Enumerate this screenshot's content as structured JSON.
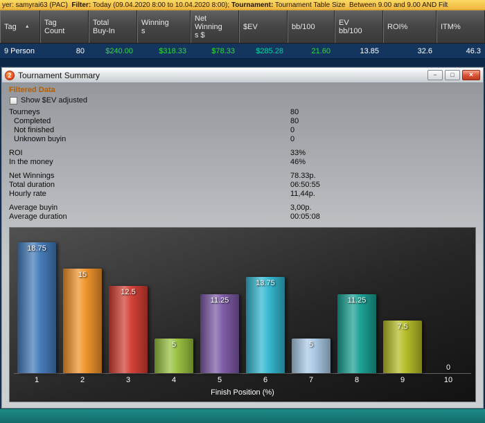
{
  "filter_bar": {
    "segments": [
      {
        "text": "yer: samyrai63 (PAC)  ",
        "bold": false
      },
      {
        "text": "Filter:",
        "bold": true
      },
      {
        "text": " Today (09.04.2020 8:00 to 10.04.2020 8:00); ",
        "bold": false
      },
      {
        "text": "Tournament:",
        "bold": true
      },
      {
        "text": " Tournament Table Size  Between 9.00 and 9.00 AND Filt",
        "bold": false
      }
    ]
  },
  "results_table": {
    "columns": [
      {
        "key": "tag",
        "label": "Tag",
        "sort": "asc",
        "wrap": false
      },
      {
        "key": "tag-count",
        "label": "Tag Count",
        "sort": null,
        "wrap": true
      },
      {
        "key": "total-buyin",
        "label": "Total Buy-In",
        "sort": null,
        "wrap": true
      },
      {
        "key": "winnings",
        "label": "Winnings",
        "sort": null,
        "wrap": true
      },
      {
        "key": "net-winnings",
        "label": "Net Winnings $",
        "sort": null,
        "wrap": true
      },
      {
        "key": "ev",
        "label": "$EV",
        "sort": null,
        "wrap": false
      },
      {
        "key": "bb100",
        "label": "bb/100",
        "sort": null,
        "wrap": false
      },
      {
        "key": "ev-bb100",
        "label": "EV bb/100",
        "sort": null,
        "wrap": true
      },
      {
        "key": "roi",
        "label": "ROI%",
        "sort": null,
        "wrap": false
      },
      {
        "key": "itm",
        "label": "ITM%",
        "sort": null,
        "wrap": false
      }
    ],
    "row": [
      {
        "text": "9 Person",
        "style": "plain",
        "align": "left"
      },
      {
        "text": "80",
        "style": "plain"
      },
      {
        "text": "$240.00",
        "style": "money"
      },
      {
        "text": "$318.33",
        "style": "money"
      },
      {
        "text": "$78.33",
        "style": "money"
      },
      {
        "text": "$285.28",
        "style": "ev"
      },
      {
        "text": "21.60",
        "style": "money"
      },
      {
        "text": "13.85",
        "style": "plain"
      },
      {
        "text": "32.6",
        "style": "plain"
      },
      {
        "text": "46.3",
        "style": "plain"
      }
    ]
  },
  "colors": {
    "money": "#2fd93c",
    "ev": "#00d2a5",
    "plain": "#ffffff",
    "filter_bar_bg": "#f2bd45",
    "row_bg": "#14365e",
    "bottom_strip": "#17807c",
    "section_title": "#b85c00"
  },
  "window": {
    "title": "Tournament Summary",
    "icon_text": "2",
    "controls": [
      {
        "name": "minimize",
        "glyph": "−"
      },
      {
        "name": "maximize",
        "glyph": "□"
      },
      {
        "name": "close",
        "glyph": "×"
      }
    ]
  },
  "summary": {
    "section_title": "Filtered Data",
    "checkbox": {
      "label": "Show $EV adjusted",
      "checked": false
    },
    "groups": [
      [
        {
          "label": "Tourneys",
          "value": "80",
          "indent": false
        },
        {
          "label": "Completed",
          "value": "80",
          "indent": true
        },
        {
          "label": "Not finished",
          "value": "0",
          "indent": true
        },
        {
          "label": "Unknown buyin",
          "value": "0",
          "indent": true
        }
      ],
      [
        {
          "label": "ROI",
          "value": "33%",
          "indent": false
        },
        {
          "label": "In the money",
          "value": "46%",
          "indent": false
        }
      ],
      [
        {
          "label": "Net Winnings",
          "value": "78.33р.",
          "indent": false
        },
        {
          "label": "Total duration",
          "value": "06:50:55",
          "indent": false
        },
        {
          "label": "Hourly rate",
          "value": "11,44р.",
          "indent": false
        }
      ],
      [
        {
          "label": "Average buyin",
          "value": "3,00р.",
          "indent": false
        },
        {
          "label": "Average duration",
          "value": "00:05:08",
          "indent": false
        }
      ]
    ]
  },
  "chart_data": {
    "type": "bar",
    "title": "",
    "categories": [
      "1",
      "2",
      "3",
      "4",
      "5",
      "6",
      "7",
      "8",
      "9",
      "10"
    ],
    "values": [
      18.75,
      15,
      12.5,
      5,
      11.25,
      13.75,
      5,
      11.25,
      7.5,
      0
    ],
    "labels": [
      "18.75",
      "15",
      "12.5",
      "5",
      "11.25",
      "13.75",
      "5",
      "11.25",
      "7.5",
      "0"
    ],
    "colors": [
      "#4179b8",
      "#f09226",
      "#d23b30",
      "#97c03c",
      "#7b57a5",
      "#2fb6d0",
      "#a9c9e5",
      "#169f92",
      "#b4bc22",
      "#9acd32"
    ],
    "xlabel": "Finish Position (%)",
    "ylabel": "",
    "ylim": [
      0,
      20
    ],
    "grid": false,
    "legend": false
  }
}
